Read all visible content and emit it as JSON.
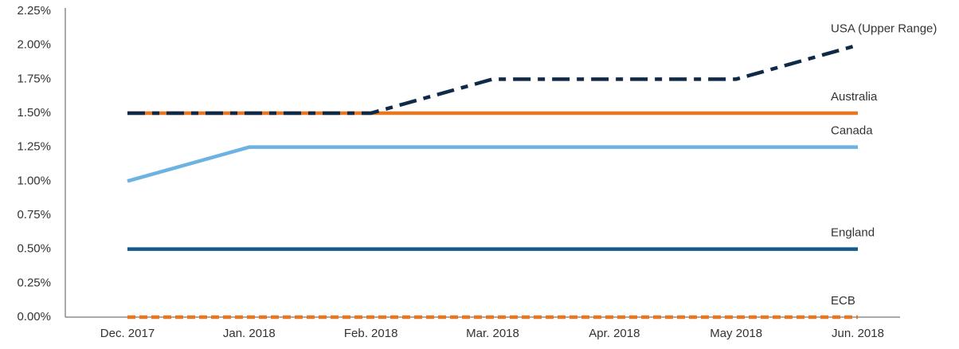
{
  "chart_data": {
    "type": "line",
    "categories": [
      "Dec. 2017",
      "Jan. 2018",
      "Feb. 2018",
      "Mar. 2018",
      "Apr. 2018",
      "May 2018",
      "Jun. 2018"
    ],
    "series": [
      {
        "name": "USA (Upper Range)",
        "color": "#0f2a48",
        "dash": "22,9,9,9",
        "values": [
          1.5,
          1.5,
          1.5,
          1.75,
          1.75,
          1.75,
          2.0
        ]
      },
      {
        "name": "Australia",
        "color": "#e87722",
        "values": [
          1.5,
          1.5,
          1.5,
          1.5,
          1.5,
          1.5,
          1.5
        ]
      },
      {
        "name": "Canada",
        "color": "#6cb2e2",
        "values": [
          1.0,
          1.25,
          1.25,
          1.25,
          1.25,
          1.25,
          1.25
        ]
      },
      {
        "name": "England",
        "color": "#155b8a",
        "values": [
          0.5,
          0.5,
          0.5,
          0.5,
          0.5,
          0.5,
          0.5
        ]
      },
      {
        "name": "ECB",
        "color": "#e87722",
        "dash": "10,5",
        "values": [
          0,
          0,
          0,
          0,
          0,
          0,
          0
        ]
      }
    ],
    "ylim": [
      0,
      2.25
    ],
    "yticks": [
      {
        "value": 0,
        "label": "0.00%"
      },
      {
        "value": 0.25,
        "label": "0.25%"
      },
      {
        "value": 0.5,
        "label": "0.50%"
      },
      {
        "value": 0.75,
        "label": "0.75%"
      },
      {
        "value": 1.0,
        "label": "1.00%"
      },
      {
        "value": 1.25,
        "label": "1.25%"
      },
      {
        "value": 1.5,
        "label": "1.50%"
      },
      {
        "value": 1.75,
        "label": "1.75%"
      },
      {
        "value": 2.0,
        "label": "2.00%"
      },
      {
        "value": 2.25,
        "label": "2.25%"
      }
    ],
    "grid": false
  }
}
